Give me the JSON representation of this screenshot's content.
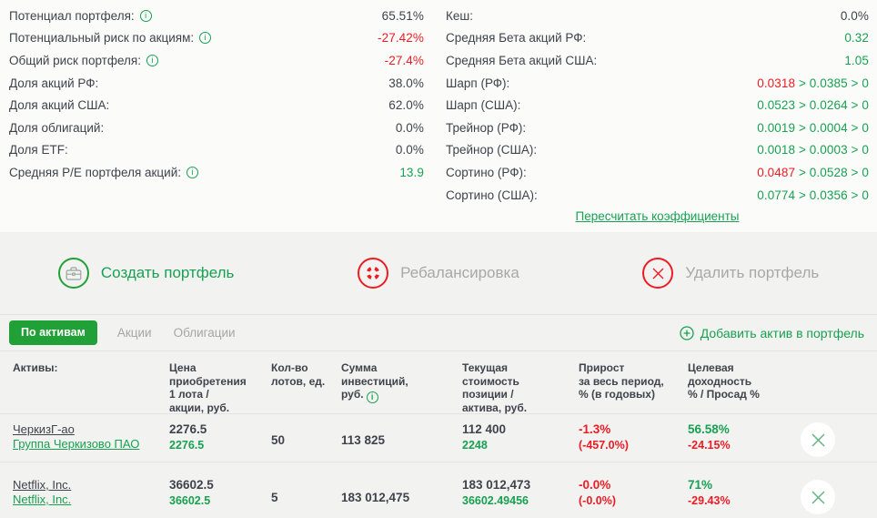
{
  "colors": {
    "brand_green": "#21a038",
    "green": "#18a152",
    "red": "#ed1c24",
    "dark": "#3f434c",
    "gray": "#a6a6a4",
    "line": "#e3e3e0",
    "bg": "#f2f2f0",
    "bg_top": "#fbfbfa",
    "close_x": "#64b584"
  },
  "summary_left": [
    {
      "label": "Потенциал портфеля:",
      "info": true,
      "value": [
        {
          "t": "65.51%",
          "c": "dark"
        }
      ]
    },
    {
      "label": "Потенциальный риск по акциям:",
      "info": true,
      "value": [
        {
          "t": "-27.42%",
          "c": "red"
        }
      ]
    },
    {
      "label": "Общий риск портфеля:",
      "info": true,
      "value": [
        {
          "t": "-27.4%",
          "c": "red"
        }
      ]
    },
    {
      "label": "Доля акций РФ:",
      "value": [
        {
          "t": "38.0%",
          "c": "dark"
        }
      ]
    },
    {
      "label": "Доля акций США:",
      "value": [
        {
          "t": "62.0%",
          "c": "dark"
        }
      ]
    },
    {
      "label": "Доля облигаций:",
      "value": [
        {
          "t": "0.0%",
          "c": "dark"
        }
      ]
    },
    {
      "label": "Доля ETF:",
      "value": [
        {
          "t": "0.0%",
          "c": "dark"
        }
      ]
    },
    {
      "label": "Средняя P/E портфеля акций:",
      "info": true,
      "value": [
        {
          "t": "13.9",
          "c": "green"
        }
      ]
    }
  ],
  "summary_right": [
    {
      "label": "Кеш:",
      "value": [
        {
          "t": "0.0%",
          "c": "dark"
        }
      ]
    },
    {
      "label": "Средняя Бета акций РФ:",
      "value": [
        {
          "t": "0.32",
          "c": "green"
        }
      ]
    },
    {
      "label": "Средняя Бета акций США:",
      "value": [
        {
          "t": "1.05",
          "c": "green"
        }
      ]
    },
    {
      "label": "Шарп (РФ):",
      "value": [
        {
          "t": "0.0318",
          "c": "red"
        },
        {
          "t": " > 0.0385 > 0",
          "c": "green"
        }
      ]
    },
    {
      "label": "Шарп (США):",
      "value": [
        {
          "t": "0.0523 > 0.0264 > 0",
          "c": "green"
        }
      ]
    },
    {
      "label": "Трейнор (РФ):",
      "value": [
        {
          "t": "0.0019 > 0.0004 > 0",
          "c": "green"
        }
      ]
    },
    {
      "label": "Трейнор (США):",
      "value": [
        {
          "t": "0.0018 > 0.0003 > 0",
          "c": "green"
        }
      ]
    },
    {
      "label": "Сортино (РФ):",
      "value": [
        {
          "t": "0.0487",
          "c": "red"
        },
        {
          "t": " > 0.0528 > 0",
          "c": "green"
        }
      ]
    },
    {
      "label": "Сортино (США):",
      "value": [
        {
          "t": "0.0774 > 0.0356 > 0",
          "c": "green"
        }
      ]
    }
  ],
  "links": {
    "recalculate": "Пересчитать коэффициенты",
    "add_asset": "Добавить актив в портфель"
  },
  "actions": [
    {
      "name": "create-portfolio",
      "label": "Создать портфель",
      "icon": "briefcase-icon",
      "style": "green"
    },
    {
      "name": "rebalance",
      "label": "Ребалансировка",
      "icon": "refresh-icon",
      "style": "red"
    },
    {
      "name": "delete-portfolio",
      "label": "Удалить портфель",
      "icon": "cross-circle-icon",
      "style": "red"
    }
  ],
  "tabs": [
    {
      "id": "by-assets",
      "label": "По активам",
      "active": true
    },
    {
      "id": "stocks",
      "label": "Акции",
      "active": false
    },
    {
      "id": "bonds",
      "label": "Облигации",
      "active": false
    }
  ],
  "table": {
    "columns": [
      {
        "id": "assets",
        "label": "Активы:"
      },
      {
        "id": "price",
        "label": "Цена\nприобретения\n1 лота /\nакции, руб."
      },
      {
        "id": "lots",
        "label": "Кол-во\nлотов, ед."
      },
      {
        "id": "invested",
        "label": "Сумма\nинвестиций,\nруб.",
        "info": true
      },
      {
        "id": "current",
        "label": "Текущая\nстоимость\nпозиции /\nактива, руб."
      },
      {
        "id": "growth",
        "label": "Прирост\nза весь период,\n% (в годовых)"
      },
      {
        "id": "target",
        "label": "Целевая\nдоходность\n% / Просад %"
      }
    ],
    "rows": [
      {
        "ticker": "ЧеркизГ-ао",
        "company": "Группа Черкизово ПАО",
        "price_lot": "2276.5",
        "price_share": "2276.5",
        "lots": "50",
        "invested": "113 825",
        "current_position": "112 400",
        "current_asset": "2248",
        "growth_period": "-1.3%",
        "growth_annual": "(-457.0%)",
        "target_yield": "56.58%",
        "drawdown": "-24.15%"
      },
      {
        "ticker": "Netflix, Inc.",
        "company": "Netflix, Inc.",
        "price_lot": "36602.5",
        "price_share": "36602.5",
        "lots": "5",
        "invested": "183 012,475",
        "current_position": "183 012,473",
        "current_asset": "36602.49456",
        "growth_period": "-0.0%",
        "growth_annual": "(-0.0%)",
        "target_yield": "71%",
        "drawdown": "-29.43%"
      }
    ]
  }
}
